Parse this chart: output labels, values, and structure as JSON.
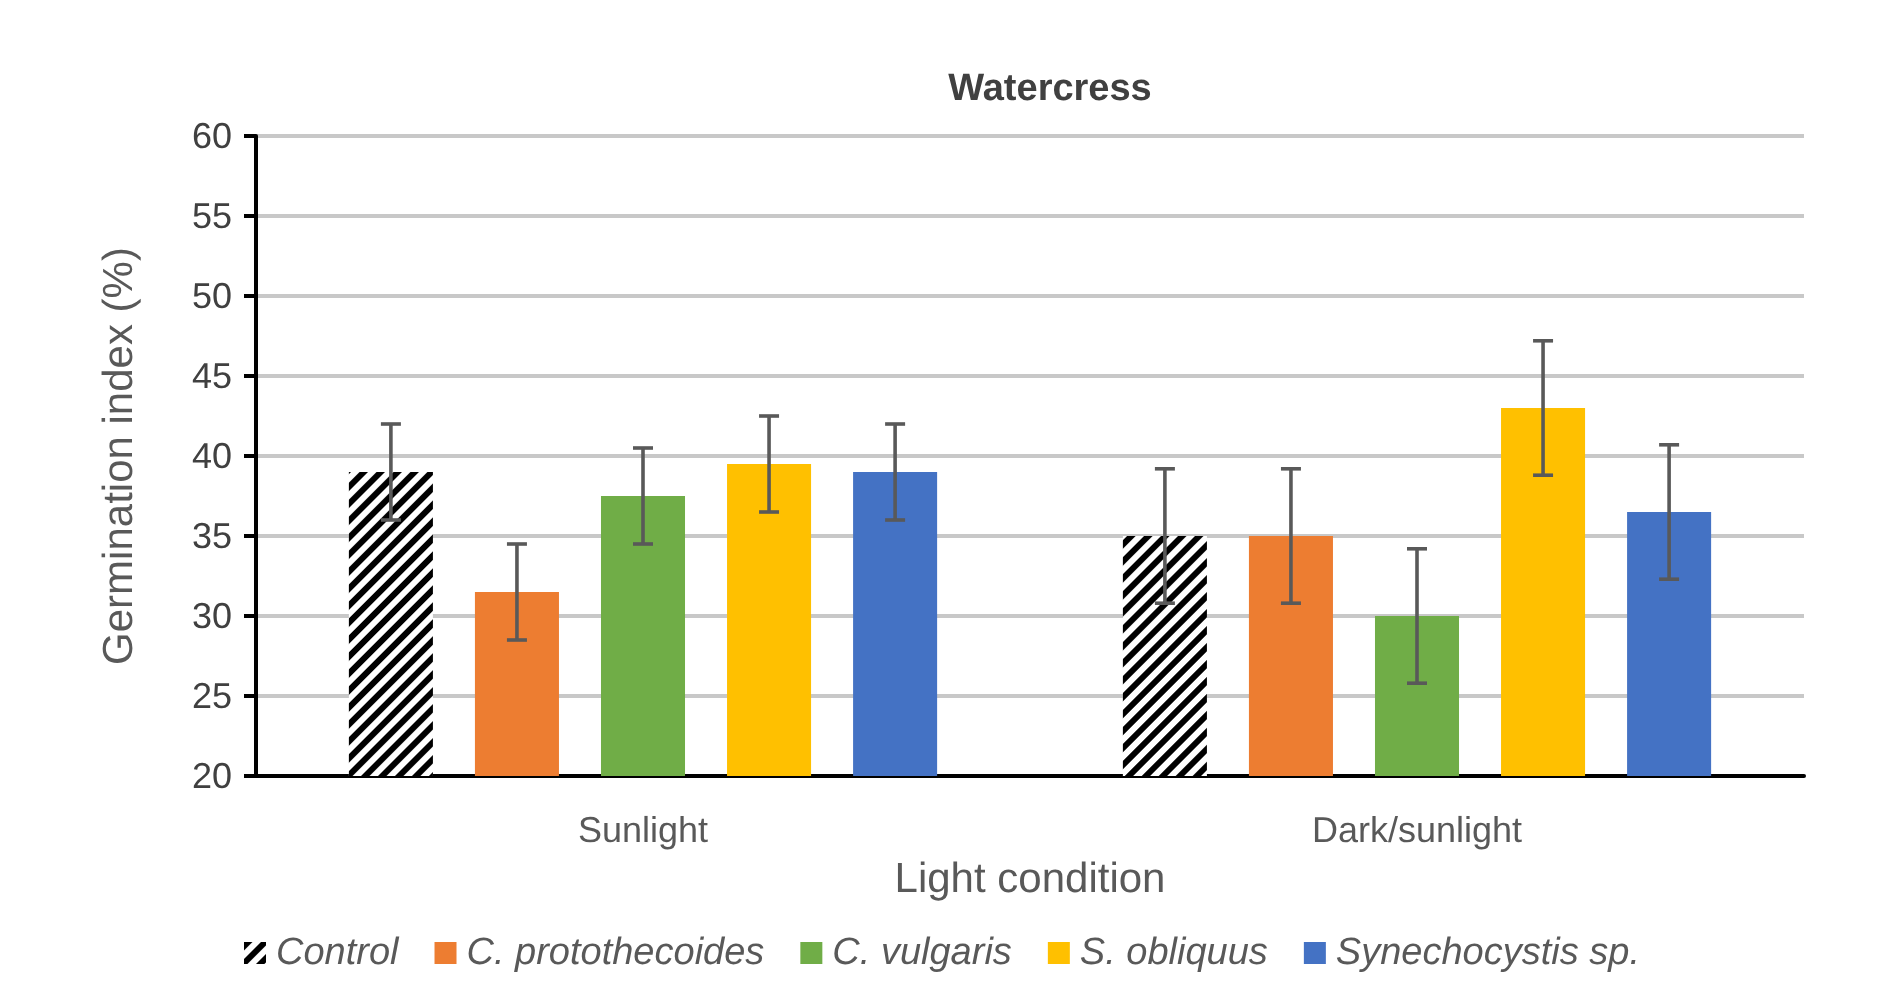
{
  "chart_data": {
    "type": "bar",
    "title": "Watercress",
    "xlabel": "Light condition",
    "ylabel": "Germination index (%)",
    "categories": [
      "Sunlight",
      "Dark/sunlight"
    ],
    "series": [
      {
        "name": "Control",
        "color": "#000000",
        "values": [
          39,
          35
        ],
        "errors": [
          3,
          4.2
        ]
      },
      {
        "name": "C. protothecoides",
        "color": "#ed7d31",
        "values": [
          31.5,
          35
        ],
        "errors": [
          3,
          4.2
        ]
      },
      {
        "name": "C. vulgaris",
        "color": "#70ad47",
        "values": [
          37.5,
          30
        ],
        "errors": [
          3,
          4.2
        ]
      },
      {
        "name": "S. obliquus",
        "color": "#ffc000",
        "values": [
          39.5,
          43
        ],
        "errors": [
          3,
          4.2
        ]
      },
      {
        "name": "Synechocystis sp.",
        "color": "#4472c4",
        "values": [
          39,
          36.5
        ],
        "errors": [
          3,
          4.2
        ]
      }
    ],
    "ylim": [
      20,
      60
    ],
    "yticks": [
      20,
      25,
      30,
      35,
      40,
      45,
      50,
      55,
      60
    ],
    "grid": "y",
    "legend": "bottom"
  }
}
